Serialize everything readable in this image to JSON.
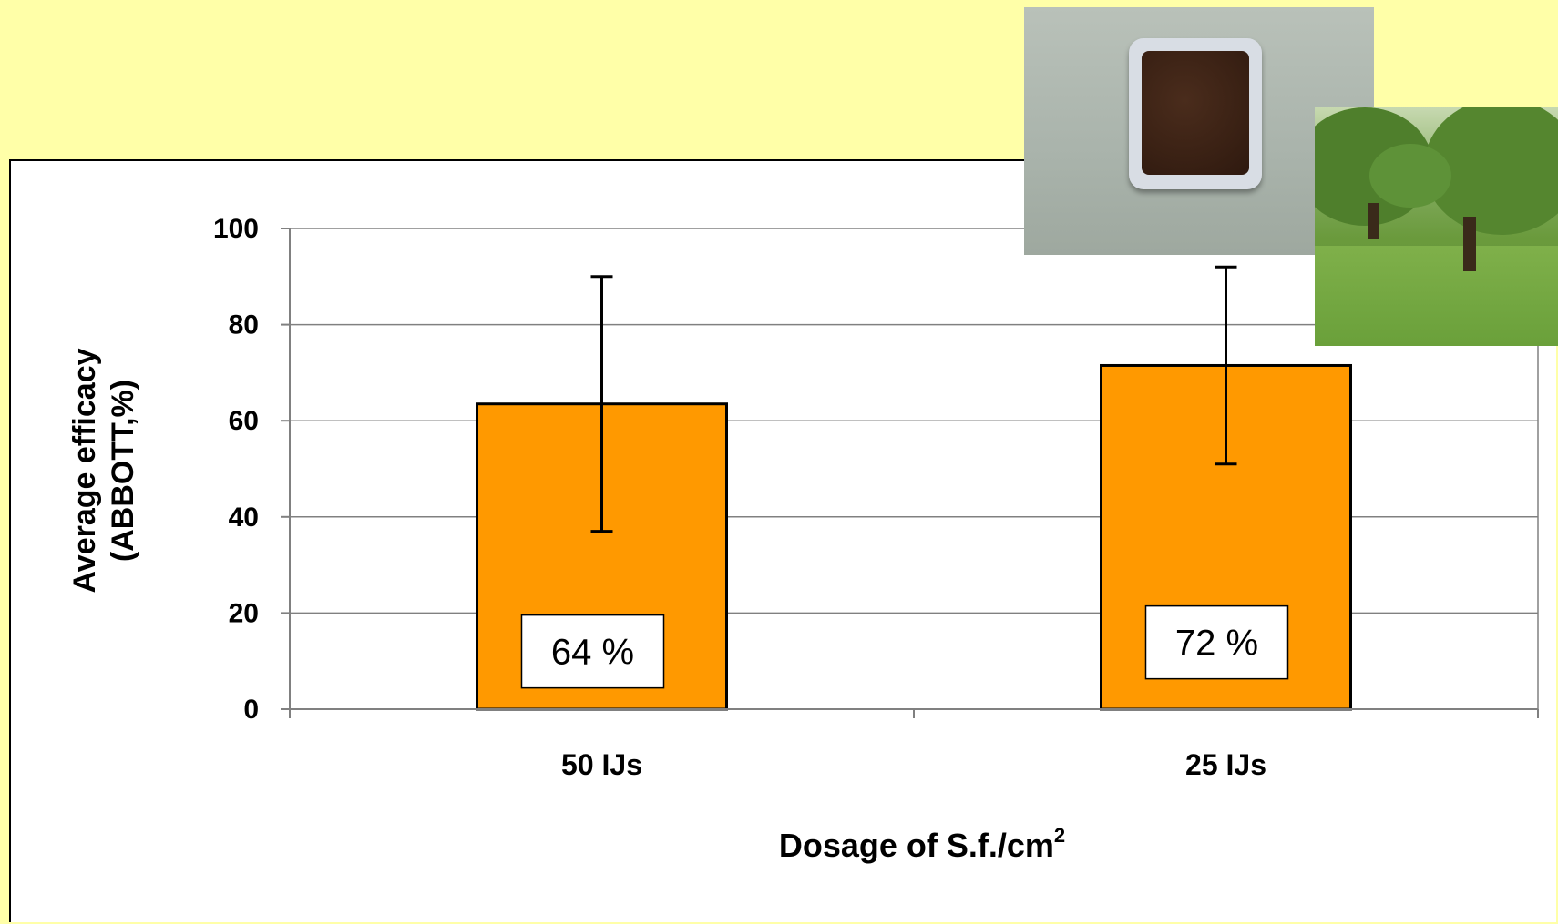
{
  "chart_data": {
    "type": "bar",
    "categories": [
      "50 IJs",
      "25 IJs"
    ],
    "values": [
      63.5,
      71.5
    ],
    "error_bars": [
      {
        "low": 37,
        "high": 90
      },
      {
        "low": 51,
        "high": 92
      }
    ],
    "data_labels": [
      "64 %",
      "72 %"
    ],
    "xlabel": "Dosage of S.f./cm",
    "xlabel_superscript": "2",
    "ylabel_line1": "Average efficacy",
    "ylabel_line2": "(ABBOTT,%)",
    "ylim": [
      0,
      100
    ],
    "yticks": [
      0,
      20,
      40,
      60,
      80,
      100
    ],
    "grid": true,
    "bar_color": "#FF9900",
    "bar_border": "#000000"
  },
  "images": {
    "photo_soil_container": "soil-in-tray-photo",
    "photo_orchard": "orchard-trees-photo"
  },
  "colors": {
    "slide_background": "#FFFFA8",
    "chart_background": "#FFFFFF",
    "gridline": "#808080"
  }
}
